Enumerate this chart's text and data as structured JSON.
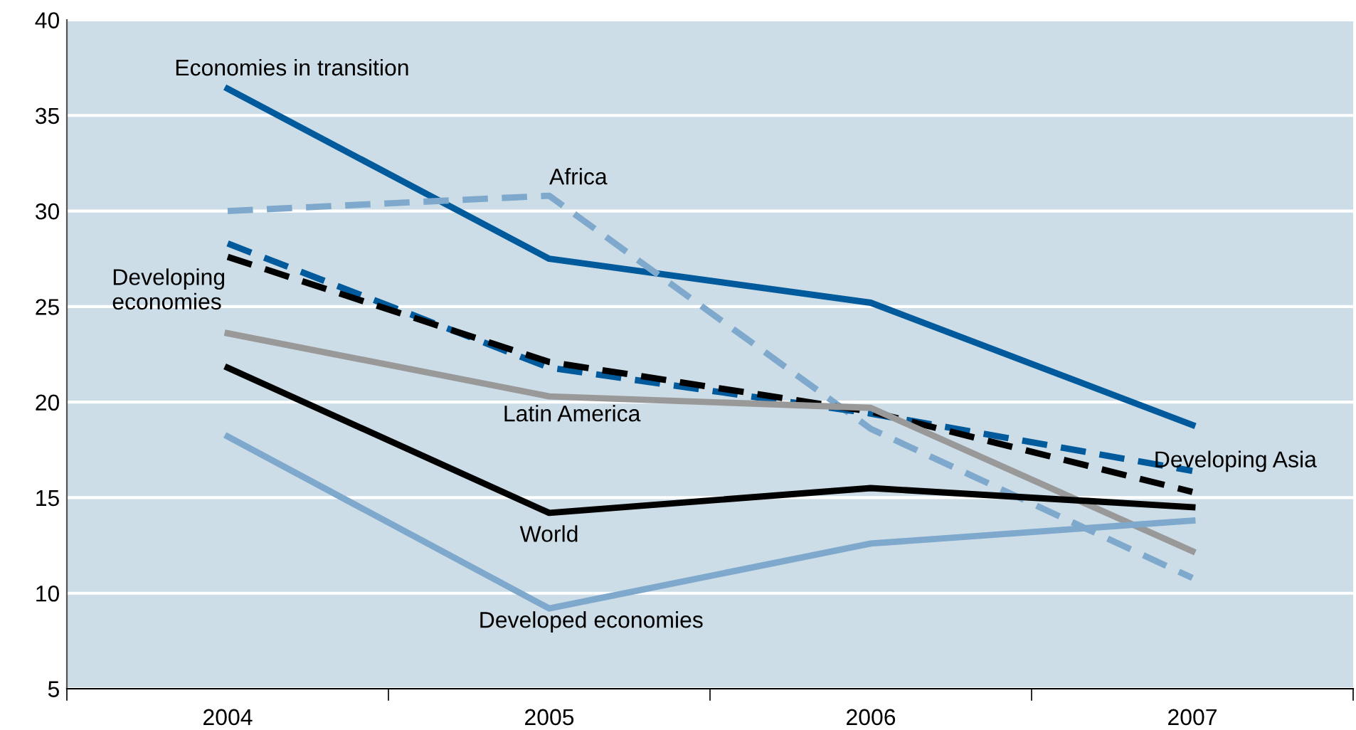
{
  "chart_data": {
    "type": "line",
    "categories": [
      "2004",
      "2005",
      "2006",
      "2007"
    ],
    "series": [
      {
        "name": "Economies in transition",
        "color": "#005a9c",
        "line_style": "solid",
        "values": [
          36.4,
          27.5,
          25.2,
          18.8
        ]
      },
      {
        "name": "Africa",
        "color": "#7fa9cc",
        "line_style": "dashed",
        "values": [
          30.0,
          30.8,
          18.6,
          10.8
        ]
      },
      {
        "name": "Developing Asia",
        "color": "#005a9c",
        "line_style": "dashed",
        "values": [
          28.3,
          21.8,
          19.4,
          16.4
        ]
      },
      {
        "name": "Developing\neconomies",
        "color": "#000000",
        "line_style": "dashed",
        "values": [
          27.6,
          22.1,
          19.5,
          15.3
        ]
      },
      {
        "name": "Latin America",
        "color": "#999999",
        "line_style": "solid",
        "values": [
          23.6,
          20.3,
          19.7,
          12.2
        ]
      },
      {
        "name": "World",
        "color": "#000000",
        "line_style": "solid",
        "values": [
          21.8,
          14.2,
          15.5,
          14.5
        ]
      },
      {
        "name": "Developed economies",
        "color": "#7fa9cc",
        "line_style": "solid",
        "values": [
          18.2,
          9.2,
          12.6,
          13.8
        ]
      }
    ],
    "ylim": [
      5,
      40
    ],
    "yticks": [
      5,
      10,
      15,
      20,
      25,
      30,
      35,
      40
    ],
    "grid": "y",
    "legend": false
  }
}
